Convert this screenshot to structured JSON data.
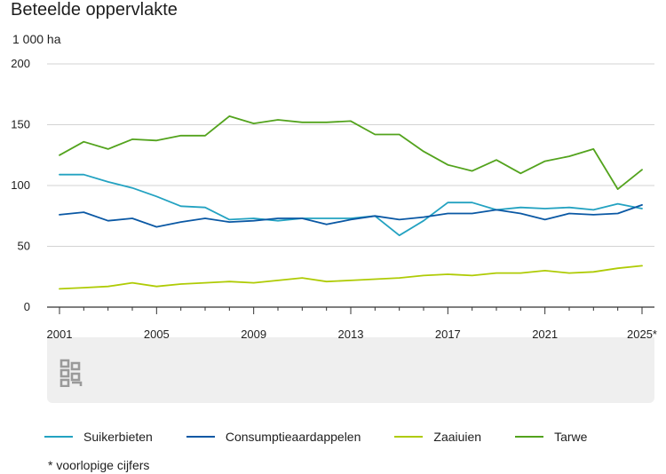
{
  "chart_data": {
    "type": "line",
    "title": "Beteelde oppervlakte",
    "ylabel": "1 000 ha",
    "xlabel": "",
    "ylim": [
      0,
      200
    ],
    "yticks": [
      "0",
      "50",
      "100",
      "150",
      "200"
    ],
    "xtick_labels": [
      "2001",
      "2005",
      "2009",
      "2013",
      "2017",
      "2021",
      "2025*"
    ],
    "x": [
      2001,
      2002,
      2003,
      2004,
      2005,
      2006,
      2007,
      2008,
      2009,
      2010,
      2011,
      2012,
      2013,
      2014,
      2015,
      2016,
      2017,
      2018,
      2019,
      2020,
      2021,
      2022,
      2023,
      2024,
      2025
    ],
    "series": [
      {
        "name": "Suikerbieten",
        "color": "#23a2c1",
        "values": [
          109,
          109,
          103,
          98,
          91,
          83,
          82,
          72,
          73,
          71,
          73,
          73,
          73,
          75,
          59,
          71,
          86,
          86,
          80,
          82,
          81,
          82,
          80,
          85,
          81
        ]
      },
      {
        "name": "Consumptieaardappelen",
        "color": "#0a58a4",
        "values": [
          76,
          78,
          71,
          73,
          66,
          70,
          73,
          70,
          71,
          73,
          73,
          68,
          72,
          75,
          72,
          74,
          77,
          77,
          80,
          77,
          72,
          77,
          76,
          77,
          84
        ]
      },
      {
        "name": "Zaaiuien",
        "color": "#afcb05",
        "values": [
          15,
          16,
          17,
          20,
          17,
          19,
          20,
          21,
          20,
          22,
          24,
          21,
          22,
          23,
          24,
          26,
          27,
          26,
          28,
          28,
          30,
          28,
          29,
          32,
          34
        ]
      },
      {
        "name": "Tarwe",
        "color": "#53a31d",
        "values": [
          125,
          136,
          130,
          138,
          137,
          141,
          141,
          157,
          151,
          154,
          152,
          152,
          153,
          142,
          142,
          128,
          117,
          112,
          121,
          110,
          120,
          124,
          130,
          97,
          113
        ]
      }
    ],
    "legend_position": "bottom"
  },
  "footnote": "* voorlopige cijfers"
}
